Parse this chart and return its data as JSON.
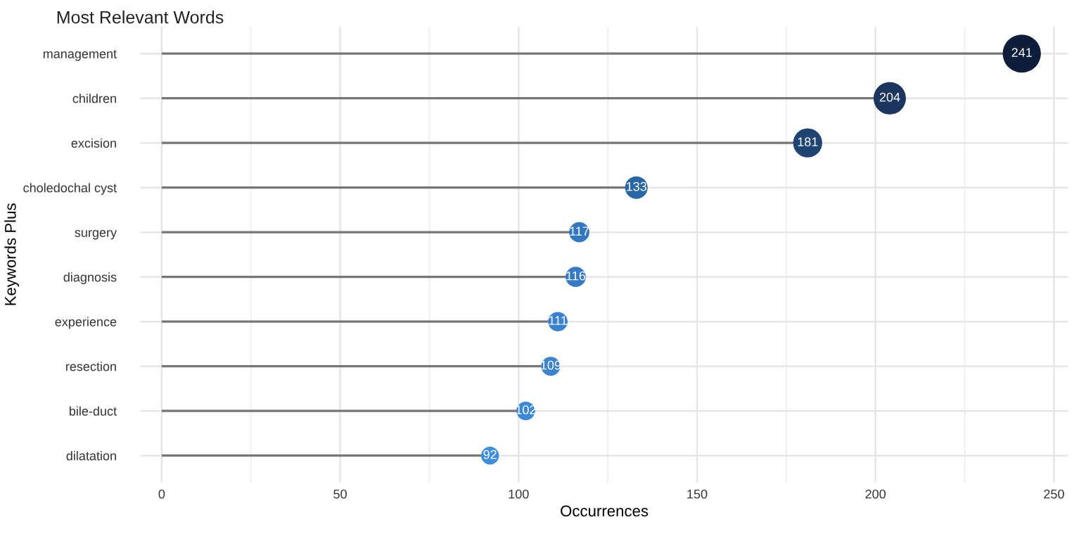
{
  "chart_data": {
    "type": "lollipop",
    "title": "Most Relevant Words",
    "xlabel": "Occurrences",
    "ylabel": "Keywords Plus",
    "orientation": "horizontal",
    "categories": [
      "management",
      "children",
      "excision",
      "choledochal cyst",
      "surgery",
      "diagnosis",
      "experience",
      "resection",
      "bile-duct",
      "dilatation"
    ],
    "values": [
      241,
      204,
      181,
      133,
      117,
      116,
      111,
      109,
      102,
      92
    ],
    "colors": [
      "#0e1d3a",
      "#1b355f",
      "#1f4472",
      "#2a67a6",
      "#3377bf",
      "#3679c4",
      "#3a82cd",
      "#3b84d0",
      "#3d89d8",
      "#3f8ede"
    ],
    "sizes": [
      1,
      0.72,
      0.58,
      0.35,
      0.28,
      0.28,
      0.26,
      0.25,
      0.24,
      0.22
    ],
    "data_labels": true,
    "xlim": [
      -6,
      254
    ],
    "xticks": [
      0,
      50,
      100,
      150,
      200,
      250
    ],
    "grid": true
  }
}
